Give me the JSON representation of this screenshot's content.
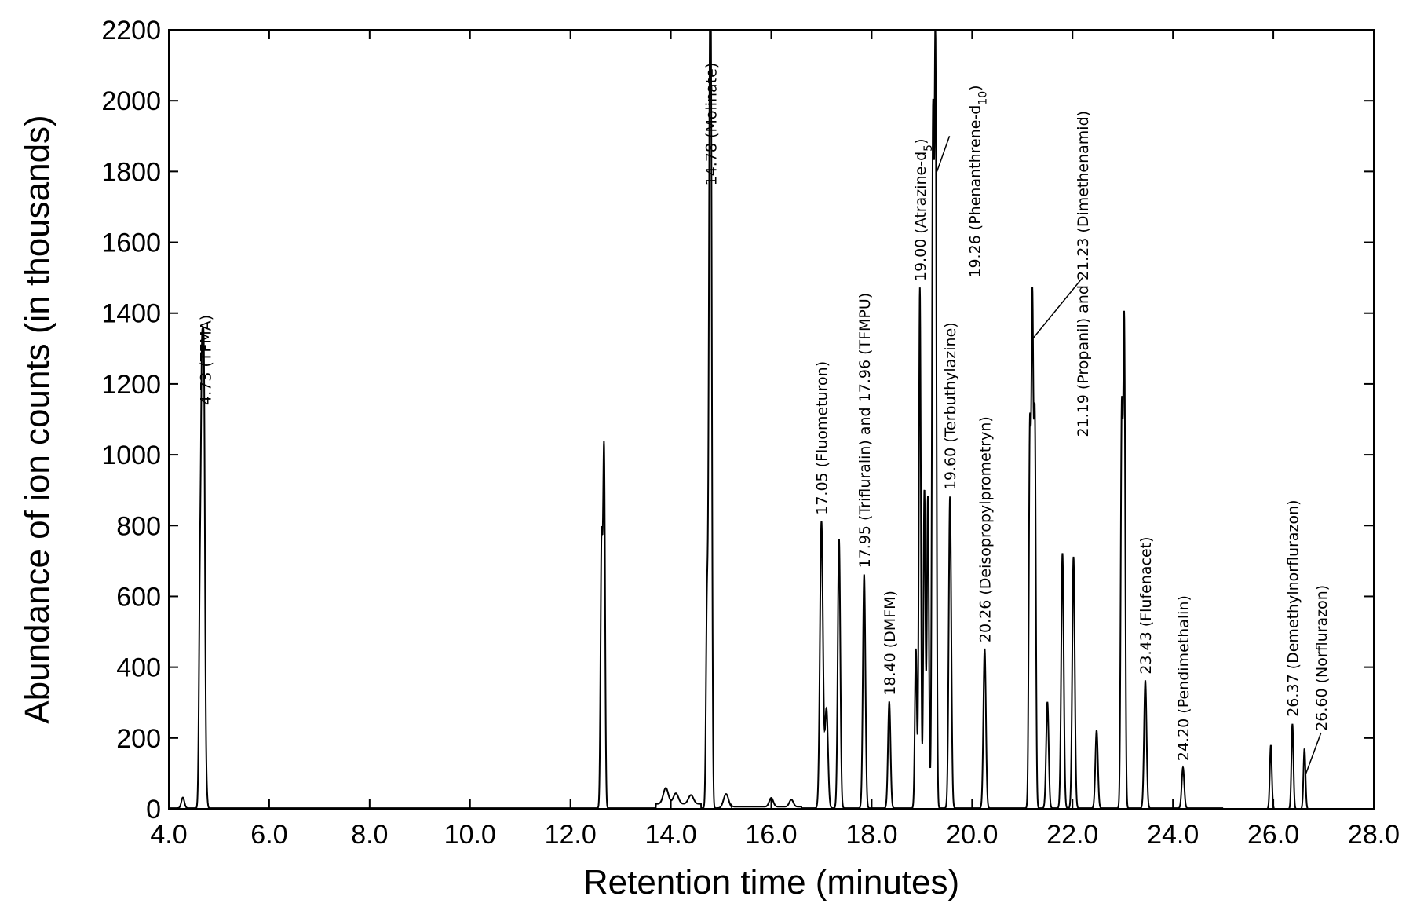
{
  "chart_data": {
    "type": "line",
    "title": "",
    "xlabel": "Retention time (minutes)",
    "ylabel": "Abundance of ion counts (in thousands)",
    "xlim": [
      4.0,
      28.0
    ],
    "ylim": [
      0,
      2200
    ],
    "x_ticks": [
      "4.0",
      "6.0",
      "8.0",
      "10.0",
      "12.0",
      "14.0",
      "16.0",
      "18.0",
      "20.0",
      "22.0",
      "24.0",
      "26.0",
      "28.0"
    ],
    "y_ticks": [
      "0",
      "200",
      "400",
      "600",
      "800",
      "1000",
      "1200",
      "1400",
      "1600",
      "1800",
      "2000",
      "2200"
    ],
    "grid": false,
    "peaks": [
      {
        "rt": 4.28,
        "h": 30,
        "w": 0.03
      },
      {
        "rt": 4.62,
        "h": 580,
        "w": 0.02
      },
      {
        "rt": 4.66,
        "h": 1090,
        "w": 0.02
      },
      {
        "rt": 4.7,
        "h": 1130,
        "w": 0.02
      },
      {
        "rt": 4.74,
        "h": 80,
        "w": 0.02
      },
      {
        "rt": 12.62,
        "h": 740,
        "w": 0.02
      },
      {
        "rt": 12.67,
        "h": 1000,
        "w": 0.02
      },
      {
        "rt": 13.9,
        "h": 45,
        "w": 0.05
      },
      {
        "rt": 14.1,
        "h": 30,
        "w": 0.05
      },
      {
        "rt": 14.4,
        "h": 25,
        "w": 0.05
      },
      {
        "rt": 14.72,
        "h": 570,
        "w": 0.02
      },
      {
        "rt": 14.77,
        "h": 1420,
        "w": 0.02
      },
      {
        "rt": 14.8,
        "h": 1730,
        "w": 0.02
      },
      {
        "rt": 15.1,
        "h": 40,
        "w": 0.05
      },
      {
        "rt": 16.0,
        "h": 25,
        "w": 0.04
      },
      {
        "rt": 16.4,
        "h": 20,
        "w": 0.04
      },
      {
        "rt": 17.0,
        "h": 810,
        "w": 0.03
      },
      {
        "rt": 17.1,
        "h": 280,
        "w": 0.03
      },
      {
        "rt": 17.35,
        "h": 760,
        "w": 0.025
      },
      {
        "rt": 17.85,
        "h": 660,
        "w": 0.025
      },
      {
        "rt": 18.35,
        "h": 300,
        "w": 0.025
      },
      {
        "rt": 18.88,
        "h": 450,
        "w": 0.02
      },
      {
        "rt": 18.96,
        "h": 1470,
        "w": 0.02
      },
      {
        "rt": 19.05,
        "h": 900,
        "w": 0.02
      },
      {
        "rt": 19.12,
        "h": 880,
        "w": 0.02
      },
      {
        "rt": 19.22,
        "h": 1890,
        "w": 0.02
      },
      {
        "rt": 19.27,
        "h": 2120,
        "w": 0.02
      },
      {
        "rt": 19.56,
        "h": 880,
        "w": 0.025
      },
      {
        "rt": 20.25,
        "h": 450,
        "w": 0.025
      },
      {
        "rt": 21.15,
        "h": 1040,
        "w": 0.02
      },
      {
        "rt": 21.2,
        "h": 1380,
        "w": 0.02
      },
      {
        "rt": 21.25,
        "h": 1070,
        "w": 0.02
      },
      {
        "rt": 21.5,
        "h": 300,
        "w": 0.025
      },
      {
        "rt": 21.8,
        "h": 720,
        "w": 0.025
      },
      {
        "rt": 22.02,
        "h": 710,
        "w": 0.025
      },
      {
        "rt": 22.48,
        "h": 220,
        "w": 0.025
      },
      {
        "rt": 22.98,
        "h": 1090,
        "w": 0.02
      },
      {
        "rt": 23.03,
        "h": 1350,
        "w": 0.02
      },
      {
        "rt": 23.45,
        "h": 360,
        "w": 0.025
      },
      {
        "rt": 24.2,
        "h": 115,
        "w": 0.025
      },
      {
        "rt": 25.95,
        "h": 180,
        "w": 0.02
      },
      {
        "rt": 26.38,
        "h": 240,
        "w": 0.02
      },
      {
        "rt": 26.62,
        "h": 170,
        "w": 0.02
      }
    ],
    "annotations": [
      {
        "text": "4.73 (TFMA)",
        "x": 4.73,
        "y": 1140
      },
      {
        "text": "14.78 (Molinate)",
        "x": 14.8,
        "y": 1760
      },
      {
        "text": "17.05 (Fluometuron)",
        "x": 17.0,
        "y": 830
      },
      {
        "text": "17.95 (Trifluralin) and 17.96 (TFMPU)",
        "x": 17.85,
        "y": 680
      },
      {
        "text": "18.40 (DMFM)",
        "x": 18.35,
        "y": 320
      },
      {
        "text": "19.00 (Atrazine-d",
        "sub": "5",
        "tail": ")",
        "x": 18.96,
        "y": 1490
      },
      {
        "text": "19.26 (Phenanthrene-d",
        "sub": "10",
        "tail": ")",
        "x": 20.05,
        "y": 1500
      },
      {
        "text": "19.60 (Terbuthylazine)",
        "x": 19.56,
        "y": 900
      },
      {
        "text": "20.26 (Deisopropylprometryn)",
        "x": 20.25,
        "y": 470
      },
      {
        "text": "21.19 (Propanil) and 21.23 (Dimethenamid)",
        "x": 22.2,
        "y": 1050
      },
      {
        "text": "23.43 (Flufenacet)",
        "x": 23.45,
        "y": 380
      },
      {
        "text": "24.20 (Pendimethalin)",
        "x": 24.2,
        "y": 135
      },
      {
        "text": "26.37 (Demethylnorflurazon)",
        "x": 26.38,
        "y": 260
      },
      {
        "text": "26.60 (Norflurazon)",
        "x": 26.95,
        "y": 220
      }
    ]
  }
}
